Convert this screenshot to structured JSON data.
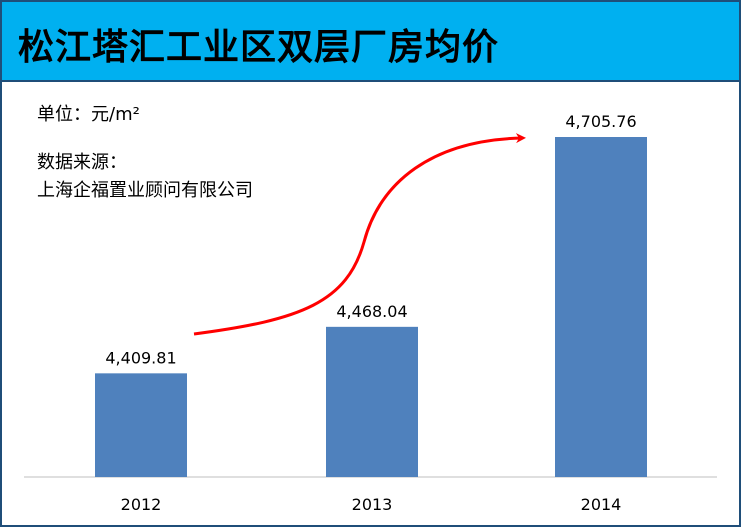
{
  "title": "松江塔汇工业区双层厂房均价",
  "unit_text": "单位：元/m²",
  "source_label": "数据来源：",
  "source_name": "上海企福置业顾问有限公司",
  "colors": {
    "header_bg": "#00b0f0",
    "bar": "#4f81bd",
    "arrow": "#ff0000",
    "border": "#1f4e79"
  },
  "chart_data": {
    "type": "bar",
    "categories": [
      "2012",
      "2013",
      "2014"
    ],
    "values": [
      4409.81,
      4468.04,
      4705.76
    ],
    "value_labels": [
      "4,409.81",
      "4,468.04",
      "4,705.76"
    ],
    "title": "",
    "xlabel": "",
    "ylabel": "",
    "annotations": [
      "upward-trend-arrow"
    ]
  }
}
